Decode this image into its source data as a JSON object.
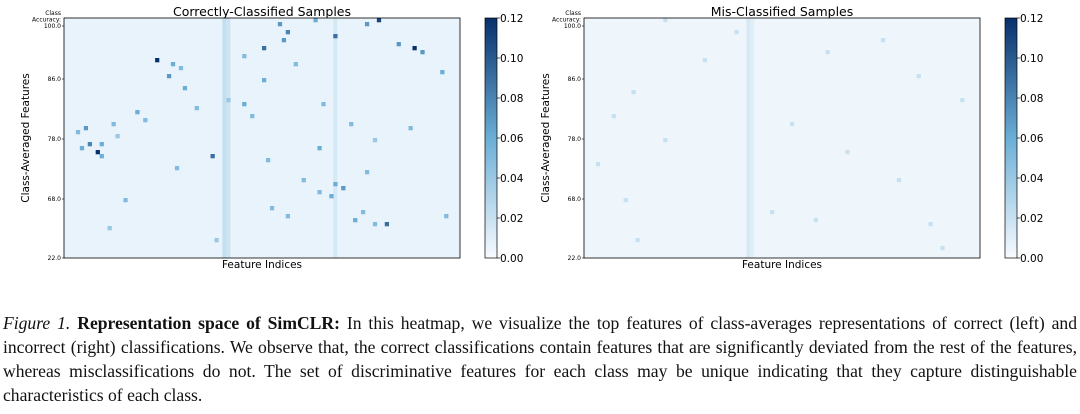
{
  "chart_data": [
    {
      "type": "heatmap",
      "title": "Correctly-Classified Samples",
      "xlabel": "Feature Indices",
      "ylabel": "Class-Averaged Features",
      "ytitle": "Class\nAccuracy:",
      "yticks": [
        "100.0",
        "86.0",
        "78.0",
        "68.0",
        "22.0"
      ],
      "colorbar": {
        "min": 0.0,
        "max": 0.12,
        "ticks": [
          "0.12",
          "0.10",
          "0.08",
          "0.06",
          "0.04",
          "0.02",
          "0.00"
        ]
      },
      "n_rows": 60,
      "n_cols": 100,
      "base_value": 0.006,
      "highlight_columns": [
        {
          "col": 40,
          "value": 0.022
        },
        {
          "col": 41,
          "value": 0.018
        },
        {
          "col": 68,
          "value": 0.015
        }
      ],
      "hot_cells": [
        {
          "row": 0,
          "col": 79,
          "value": 0.11
        },
        {
          "row": 0,
          "col": 63,
          "value": 0.06
        },
        {
          "row": 1,
          "col": 54,
          "value": 0.07
        },
        {
          "row": 1,
          "col": 76,
          "value": 0.07
        },
        {
          "row": 3,
          "col": 56,
          "value": 0.08
        },
        {
          "row": 4,
          "col": 68,
          "value": 0.09
        },
        {
          "row": 5,
          "col": 55,
          "value": 0.07
        },
        {
          "row": 6,
          "col": 84,
          "value": 0.07
        },
        {
          "row": 7,
          "col": 88,
          "value": 0.12
        },
        {
          "row": 7,
          "col": 50,
          "value": 0.09
        },
        {
          "row": 8,
          "col": 90,
          "value": 0.07
        },
        {
          "row": 9,
          "col": 45,
          "value": 0.05
        },
        {
          "row": 10,
          "col": 23,
          "value": 0.12
        },
        {
          "row": 11,
          "col": 27,
          "value": 0.06
        },
        {
          "row": 11,
          "col": 58,
          "value": 0.05
        },
        {
          "row": 12,
          "col": 29,
          "value": 0.05
        },
        {
          "row": 13,
          "col": 95,
          "value": 0.06
        },
        {
          "row": 14,
          "col": 26,
          "value": 0.07
        },
        {
          "row": 15,
          "col": 50,
          "value": 0.06
        },
        {
          "row": 17,
          "col": 30,
          "value": 0.06
        },
        {
          "row": 20,
          "col": 41,
          "value": 0.04
        },
        {
          "row": 21,
          "col": 45,
          "value": 0.06
        },
        {
          "row": 21,
          "col": 65,
          "value": 0.05
        },
        {
          "row": 22,
          "col": 33,
          "value": 0.05
        },
        {
          "row": 23,
          "col": 18,
          "value": 0.06
        },
        {
          "row": 24,
          "col": 47,
          "value": 0.05
        },
        {
          "row": 25,
          "col": 20,
          "value": 0.05
        },
        {
          "row": 26,
          "col": 12,
          "value": 0.05
        },
        {
          "row": 26,
          "col": 72,
          "value": 0.05
        },
        {
          "row": 27,
          "col": 5,
          "value": 0.07
        },
        {
          "row": 27,
          "col": 87,
          "value": 0.05
        },
        {
          "row": 28,
          "col": 3,
          "value": 0.05
        },
        {
          "row": 29,
          "col": 13,
          "value": 0.04
        },
        {
          "row": 30,
          "col": 78,
          "value": 0.04
        },
        {
          "row": 31,
          "col": 6,
          "value": 0.08
        },
        {
          "row": 31,
          "col": 9,
          "value": 0.06
        },
        {
          "row": 32,
          "col": 4,
          "value": 0.06
        },
        {
          "row": 32,
          "col": 64,
          "value": 0.06
        },
        {
          "row": 33,
          "col": 8,
          "value": 0.12
        },
        {
          "row": 34,
          "col": 37,
          "value": 0.09
        },
        {
          "row": 34,
          "col": 9,
          "value": 0.06
        },
        {
          "row": 35,
          "col": 51,
          "value": 0.05
        },
        {
          "row": 37,
          "col": 28,
          "value": 0.05
        },
        {
          "row": 38,
          "col": 76,
          "value": 0.05
        },
        {
          "row": 40,
          "col": 60,
          "value": 0.05
        },
        {
          "row": 41,
          "col": 68,
          "value": 0.06
        },
        {
          "row": 42,
          "col": 70,
          "value": 0.07
        },
        {
          "row": 43,
          "col": 64,
          "value": 0.05
        },
        {
          "row": 44,
          "col": 67,
          "value": 0.06
        },
        {
          "row": 45,
          "col": 15,
          "value": 0.05
        },
        {
          "row": 47,
          "col": 52,
          "value": 0.05
        },
        {
          "row": 48,
          "col": 75,
          "value": 0.05
        },
        {
          "row": 49,
          "col": 56,
          "value": 0.05
        },
        {
          "row": 49,
          "col": 96,
          "value": 0.05
        },
        {
          "row": 50,
          "col": 73,
          "value": 0.06
        },
        {
          "row": 51,
          "col": 81,
          "value": 0.09
        },
        {
          "row": 51,
          "col": 78,
          "value": 0.05
        },
        {
          "row": 52,
          "col": 11,
          "value": 0.04
        },
        {
          "row": 55,
          "col": 38,
          "value": 0.04
        }
      ]
    },
    {
      "type": "heatmap",
      "title": "Mis-Classified Samples",
      "xlabel": "Feature Indices",
      "ylabel": "Class-Averaged Features",
      "ytitle": "Class\nAccuracy:",
      "yticks": [
        "100.0",
        "86.0",
        "78.0",
        "68.0",
        "22.0"
      ],
      "colorbar": {
        "min": 0.0,
        "max": 0.12,
        "ticks": [
          "0.12",
          "0.10",
          "0.08",
          "0.06",
          "0.04",
          "0.02",
          "0.00"
        ]
      },
      "n_rows": 60,
      "n_cols": 100,
      "base_value": 0.004,
      "highlight_columns": [
        {
          "col": 41,
          "value": 0.014
        },
        {
          "col": 42,
          "value": 0.01
        }
      ],
      "hot_cells": [
        {
          "row": 0,
          "col": 20,
          "value": 0.02
        },
        {
          "row": 3,
          "col": 38,
          "value": 0.02
        },
        {
          "row": 5,
          "col": 75,
          "value": 0.02
        },
        {
          "row": 8,
          "col": 61,
          "value": 0.02
        },
        {
          "row": 10,
          "col": 30,
          "value": 0.02
        },
        {
          "row": 14,
          "col": 84,
          "value": 0.02
        },
        {
          "row": 18,
          "col": 12,
          "value": 0.02
        },
        {
          "row": 20,
          "col": 95,
          "value": 0.02
        },
        {
          "row": 24,
          "col": 7,
          "value": 0.02
        },
        {
          "row": 26,
          "col": 52,
          "value": 0.02
        },
        {
          "row": 30,
          "col": 20,
          "value": 0.02
        },
        {
          "row": 33,
          "col": 66,
          "value": 0.02
        },
        {
          "row": 36,
          "col": 3,
          "value": 0.02
        },
        {
          "row": 40,
          "col": 79,
          "value": 0.02
        },
        {
          "row": 45,
          "col": 10,
          "value": 0.02
        },
        {
          "row": 48,
          "col": 47,
          "value": 0.02
        },
        {
          "row": 50,
          "col": 58,
          "value": 0.02
        },
        {
          "row": 51,
          "col": 87,
          "value": 0.02
        },
        {
          "row": 55,
          "col": 13,
          "value": 0.02
        },
        {
          "row": 57,
          "col": 90,
          "value": 0.02
        }
      ]
    }
  ],
  "caption": {
    "label": "Figure 1.",
    "title": "Representation space of SimCLR:",
    "text": " In this heatmap, we visualize the top features of class-averages representations of correct (left) and incorrect (right) classifications. We observe that, the correct classifications contain features that are significantly deviated from the rest of the features, whereas misclassifications do not. The set of discriminative features for each class may be unique indicating that they capture distinguishable characteristics of each class."
  },
  "colors": {
    "cmap_low": "#f7fbff",
    "cmap_mid": "#6baed6",
    "cmap_high": "#08306b"
  }
}
